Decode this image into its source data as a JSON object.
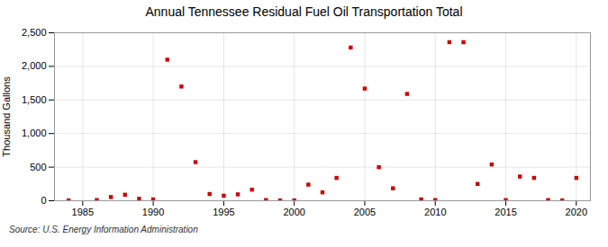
{
  "chart_data": {
    "type": "scatter",
    "title": "Annual Tennessee Residual Fuel Oil Transportation Total",
    "ylabel": "Thousand Gallons",
    "source": "Source: U.S. Energy Information Administration",
    "color": "#cc0000",
    "marker": "square",
    "x": [
      1984,
      1986,
      1987,
      1988,
      1989,
      1990,
      1991,
      1992,
      1993,
      1994,
      1995,
      1996,
      1997,
      1998,
      1999,
      2000,
      2001,
      2002,
      2003,
      2004,
      2005,
      2006,
      2007,
      2008,
      2009,
      2010,
      2011,
      2012,
      2013,
      2014,
      2015,
      2016,
      2017,
      2018,
      2019,
      2020
    ],
    "values": [
      5,
      10,
      55,
      90,
      30,
      20,
      2100,
      1700,
      575,
      100,
      75,
      95,
      165,
      10,
      5,
      5,
      240,
      125,
      340,
      2280,
      1670,
      500,
      185,
      1590,
      20,
      10,
      2360,
      2360,
      250,
      540,
      10,
      360,
      340,
      10,
      5,
      340
    ],
    "xlim": [
      1983,
      2021
    ],
    "xticks": [
      1985,
      1990,
      1995,
      2000,
      2005,
      2010,
      2015,
      2020
    ],
    "ylim": [
      0,
      2500
    ],
    "yticks": [
      0,
      500,
      {
        "value": 1000,
        "label": "1,000"
      },
      {
        "value": 1500,
        "label": "1,500"
      },
      {
        "value": 2000,
        "label": "2,000"
      },
      {
        "value": 2500,
        "label": "2,500"
      }
    ],
    "grid": true
  }
}
